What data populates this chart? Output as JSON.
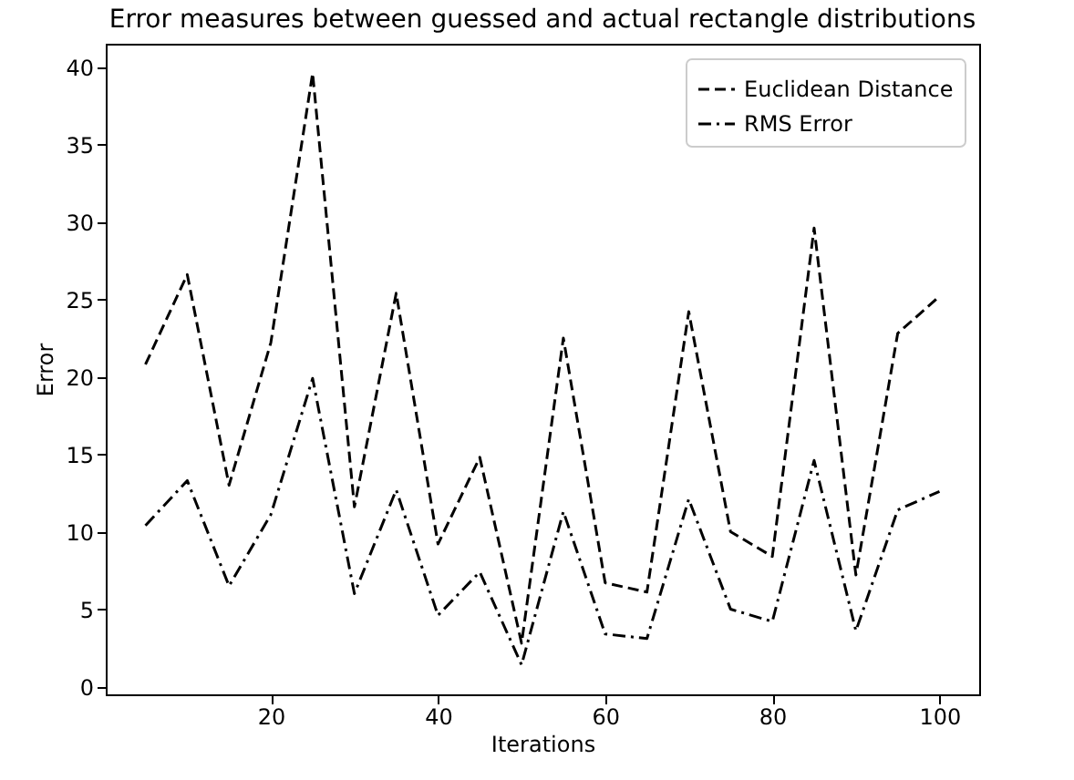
{
  "chart_data": {
    "type": "line",
    "title": "Error measures between guessed and actual rectangle distributions",
    "xlabel": "Iterations",
    "ylabel": "Error",
    "x": [
      5,
      10,
      15,
      20,
      25,
      30,
      35,
      40,
      45,
      50,
      55,
      60,
      65,
      70,
      75,
      80,
      85,
      90,
      95,
      100
    ],
    "series": [
      {
        "name": "Euclidean Distance",
        "color": "#000000",
        "line_style": "dashed",
        "values": [
          20.8,
          26.6,
          13,
          22.2,
          39.6,
          11.6,
          25.4,
          9.2,
          14.8,
          2.8,
          22.5,
          6.7,
          6.1,
          24.2,
          10,
          8.4,
          29.6,
          7.2,
          22.8,
          25.2
        ]
      },
      {
        "name": "RMS Error",
        "color": "#000000",
        "line_style": "dashdot",
        "values": [
          10.4,
          13.3,
          6.5,
          11.1,
          19.9,
          6,
          12.7,
          4.6,
          7.4,
          1.4,
          11.3,
          3.4,
          3.1,
          12.1,
          5,
          4.2,
          14.6,
          3.6,
          11.4,
          12.6
        ]
      }
    ],
    "xlim": [
      0.25,
      104.75
    ],
    "xticks": [
      20,
      40,
      60,
      80,
      100
    ],
    "ylim": [
      -0.5,
      41.5
    ],
    "yticks": [
      0,
      5,
      10,
      15,
      20,
      25,
      30,
      35,
      40
    ],
    "grid": false,
    "legend": "top right",
    "marker": "none"
  }
}
